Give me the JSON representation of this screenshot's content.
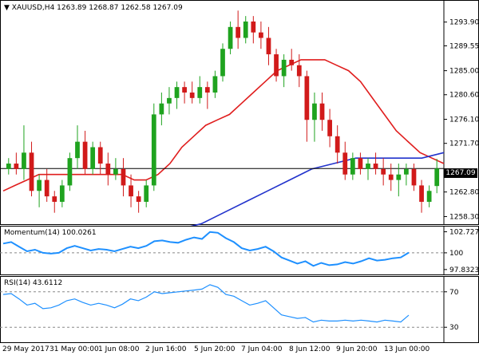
{
  "header": {
    "symbol_text": "XAUUSD,H4",
    "open": "1263.89",
    "high": "1268.87",
    "low": "1262.58",
    "close": "1267.09"
  },
  "main_chart": {
    "y_ticks": [
      "1293.90",
      "1289.55",
      "1285.00",
      "1280.60",
      "1276.10",
      "1271.70",
      "1262.80",
      "1258.30"
    ],
    "current_price_label": "1267.09",
    "colors": {
      "bull": "#1fa31f",
      "bear": "#d11a1a",
      "sma20": "#e01e1e",
      "sma100": "#2233cc"
    }
  },
  "momentum": {
    "label": "Momentum(14) 100.0261",
    "y_ticks": [
      "102.7277",
      "100",
      "97.8323"
    ],
    "line_color": "#1e90ff"
  },
  "rsi": {
    "label": "RSI(14) 43.6112",
    "y_ticks": [
      "70",
      "30"
    ],
    "line_color": "#1e90ff"
  },
  "x_axis": {
    "labels": [
      "29 May 2017",
      "31 May 00:00",
      "1 Jun 08:00",
      "2 Jun 16:00",
      "5 Jun 20:00",
      "7 Jun 04:00",
      "8 Jun 12:00",
      "9 Jun 20:00",
      "13 Jun 00:00"
    ]
  },
  "chart_data": [
    {
      "type": "candlestick",
      "title": "XAUUSD,H4",
      "ylim": [
        1257.2,
        1297.5
      ],
      "candles": [
        [
          1267,
          1269,
          1266,
          1268
        ],
        [
          1268,
          1270,
          1266,
          1267
        ],
        [
          1267,
          1275,
          1265,
          1270
        ],
        [
          1270,
          1272,
          1262,
          1263
        ],
        [
          1263,
          1266,
          1260,
          1265
        ],
        [
          1265,
          1267,
          1261,
          1262
        ],
        [
          1262,
          1263,
          1259,
          1261
        ],
        [
          1261,
          1265,
          1260,
          1264
        ],
        [
          1264,
          1270,
          1263,
          1269
        ],
        [
          1269,
          1275,
          1267,
          1272
        ],
        [
          1272,
          1274,
          1266,
          1267
        ],
        [
          1267,
          1272,
          1266,
          1271
        ],
        [
          1271,
          1272,
          1266,
          1268
        ],
        [
          1268,
          1270,
          1264,
          1266
        ],
        [
          1266,
          1269,
          1265,
          1267
        ],
        [
          1267,
          1269,
          1262,
          1264
        ],
        [
          1264,
          1266,
          1260,
          1262
        ],
        [
          1262,
          1263,
          1259,
          1261
        ],
        [
          1261,
          1265,
          1260,
          1264
        ],
        [
          1264,
          1279,
          1263,
          1277
        ],
        [
          1277,
          1281,
          1275,
          1279
        ],
        [
          1279,
          1282,
          1277,
          1280
        ],
        [
          1280,
          1283,
          1278,
          1282
        ],
        [
          1282,
          1283,
          1279,
          1281
        ],
        [
          1281,
          1283,
          1279,
          1280
        ],
        [
          1280,
          1284,
          1279,
          1282
        ],
        [
          1282,
          1283,
          1278,
          1281
        ],
        [
          1281,
          1285,
          1280,
          1284
        ],
        [
          1284,
          1290,
          1283,
          1289
        ],
        [
          1289,
          1294,
          1288,
          1293
        ],
        [
          1293,
          1296,
          1289,
          1291
        ],
        [
          1291,
          1295,
          1290,
          1294
        ],
        [
          1294,
          1295,
          1290,
          1292
        ],
        [
          1292,
          1294,
          1289,
          1291
        ],
        [
          1291,
          1293,
          1286,
          1288
        ],
        [
          1288,
          1289,
          1283,
          1284
        ],
        [
          1284,
          1288,
          1282,
          1287
        ],
        [
          1287,
          1289,
          1285,
          1286
        ],
        [
          1286,
          1288,
          1282,
          1284
        ],
        [
          1284,
          1285,
          1272,
          1276
        ],
        [
          1276,
          1281,
          1272,
          1279
        ],
        [
          1279,
          1281,
          1274,
          1276
        ],
        [
          1276,
          1278,
          1271,
          1273
        ],
        [
          1273,
          1275,
          1268,
          1270
        ],
        [
          1270,
          1272,
          1265,
          1266
        ],
        [
          1266,
          1270,
          1265,
          1269
        ],
        [
          1269,
          1270,
          1266,
          1267
        ],
        [
          1267,
          1269,
          1265,
          1268
        ],
        [
          1268,
          1270,
          1266,
          1267
        ],
        [
          1267,
          1269,
          1264,
          1266
        ],
        [
          1266,
          1268,
          1263,
          1265
        ],
        [
          1265,
          1268,
          1262,
          1266
        ],
        [
          1266,
          1268,
          1264,
          1267
        ],
        [
          1267,
          1268,
          1263,
          1264
        ],
        [
          1264,
          1265,
          1259,
          1261
        ],
        [
          1261,
          1264,
          1260,
          1263
        ],
        [
          1263.89,
          1268.87,
          1262.58,
          1267.09
        ]
      ],
      "series": [
        {
          "values": [
            1263,
            1264,
            1265,
            1266,
            1266,
            1266,
            1266,
            1266,
            1266,
            1266,
            1266,
            1265,
            1265,
            1266,
            1268,
            1271,
            1273,
            1275,
            1276,
            1277,
            1279,
            1281,
            1283,
            1285,
            1286,
            1287,
            1287,
            1287,
            1286,
            1285,
            1283,
            1280,
            1277,
            1274,
            1272,
            1270,
            1269,
            1268
          ]
        },
        {
          "values": [
            1256,
            1257,
            1259,
            1261,
            1263,
            1265,
            1267,
            1268,
            1269,
            1269,
            1269,
            1269,
            1270
          ]
        }
      ],
      "current_price": 1267.09
    },
    {
      "type": "line",
      "title": "Momentum(14) 100.0261",
      "ylim": [
        97.3,
        103.3
      ],
      "series": [
        {
          "name": "Momentum(14)",
          "values": [
            101.2,
            101.4,
            100.8,
            100.2,
            100.4,
            100.0,
            99.9,
            100.0,
            100.6,
            100.9,
            100.6,
            100.3,
            100.5,
            100.4,
            100.2,
            100.5,
            100.8,
            100.6,
            100.9,
            101.5,
            101.6,
            101.4,
            101.3,
            101.7,
            102.0,
            101.8,
            102.7,
            102.6,
            101.9,
            101.4,
            100.6,
            100.3,
            100.5,
            100.8,
            100.2,
            99.4,
            99.0,
            98.6,
            98.9,
            98.3,
            98.7,
            98.4,
            98.5,
            98.8,
            98.6,
            98.9,
            99.3,
            99.0,
            99.1,
            99.3,
            99.4,
            100.03
          ]
        }
      ]
    },
    {
      "type": "line",
      "title": "RSI(14) 43.6112",
      "ylim": [
        14,
        86
      ],
      "series": [
        {
          "name": "RSI(14)",
          "values": [
            67,
            68,
            62,
            55,
            57,
            51,
            52,
            55,
            60,
            62,
            58,
            55,
            57,
            55,
            52,
            56,
            62,
            60,
            64,
            70,
            68,
            69,
            70,
            71,
            72,
            73,
            78,
            75,
            67,
            65,
            60,
            55,
            57,
            60,
            52,
            44,
            42,
            40,
            41,
            36,
            38,
            37,
            37,
            38,
            37,
            38,
            37,
            36,
            38,
            37,
            36,
            43.6
          ]
        }
      ]
    }
  ]
}
